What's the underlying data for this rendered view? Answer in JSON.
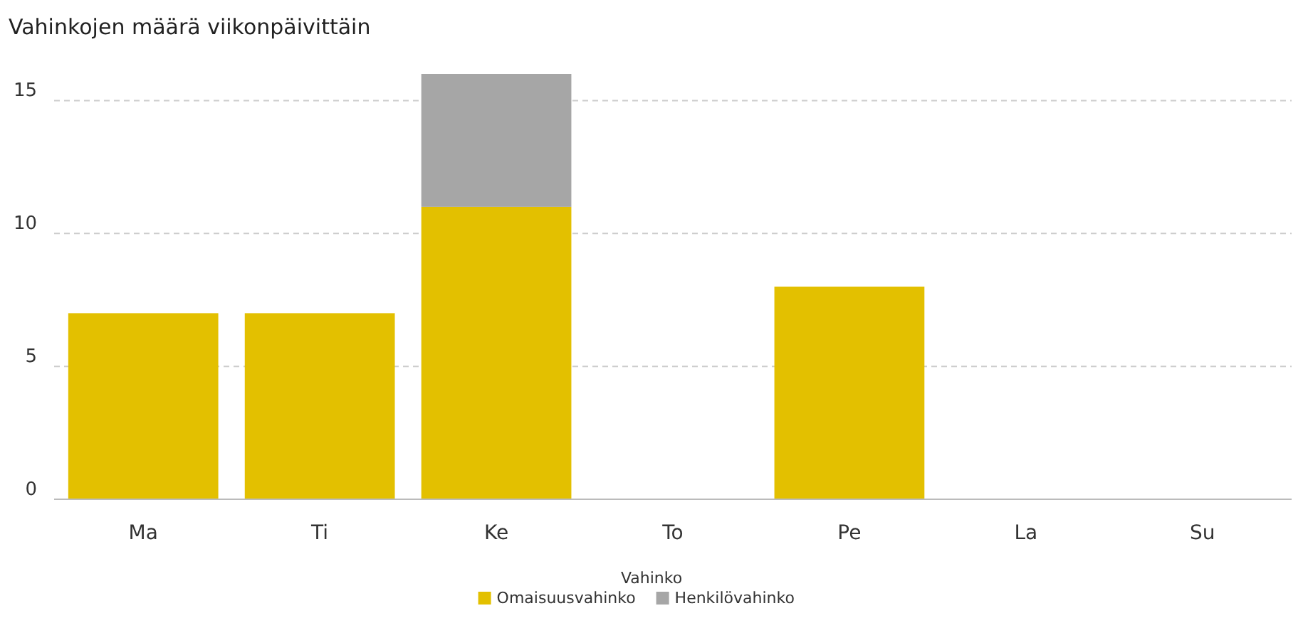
{
  "chart_data": {
    "type": "bar",
    "title": "Vahinkojen määrä viikonpäivittäin",
    "categories": [
      "Ma",
      "Ti",
      "Ke",
      "To",
      "Pe",
      "La",
      "Su"
    ],
    "stacked": true,
    "series": [
      {
        "name": "Omaisuusvahinko",
        "color": "#e3c000",
        "values": [
          7,
          7,
          11,
          0,
          8,
          0,
          0
        ]
      },
      {
        "name": "Henkilövahinko",
        "color": "#a6a6a6",
        "values": [
          0,
          0,
          5,
          0,
          0,
          0,
          0
        ]
      }
    ],
    "ylim": [
      0,
      16
    ],
    "yticks": [
      0,
      5,
      10,
      15
    ],
    "grid": "y",
    "legend": "bottom",
    "legend_title": "Vahinko"
  }
}
